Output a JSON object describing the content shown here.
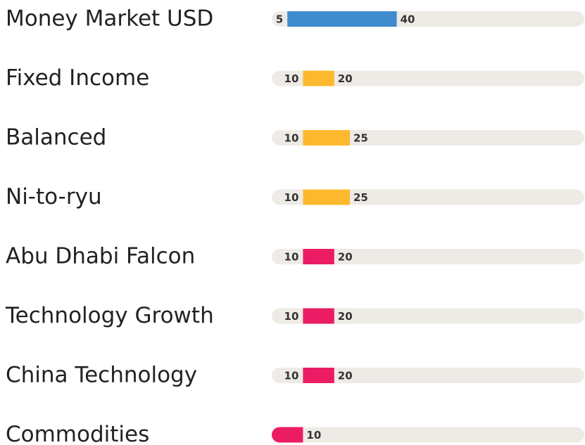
{
  "chart_data": {
    "type": "range-bar",
    "categories": [
      "Money Market USD",
      "Fixed Income",
      "Balanced",
      "Ni-to-ryu",
      "Abu Dhabi Falcon",
      "Technology Growth",
      "China Technology",
      "Commodities"
    ],
    "low": [
      5,
      10,
      10,
      10,
      10,
      10,
      10,
      0
    ],
    "high": [
      40,
      20,
      25,
      25,
      20,
      20,
      20,
      10
    ],
    "colors": [
      "#3f8ccf",
      "#fdb92d",
      "#fdb92d",
      "#fdb92d",
      "#ec1c64",
      "#ec1c64",
      "#ec1c64",
      "#ec1c64"
    ],
    "xlim": [
      0,
      100
    ]
  }
}
